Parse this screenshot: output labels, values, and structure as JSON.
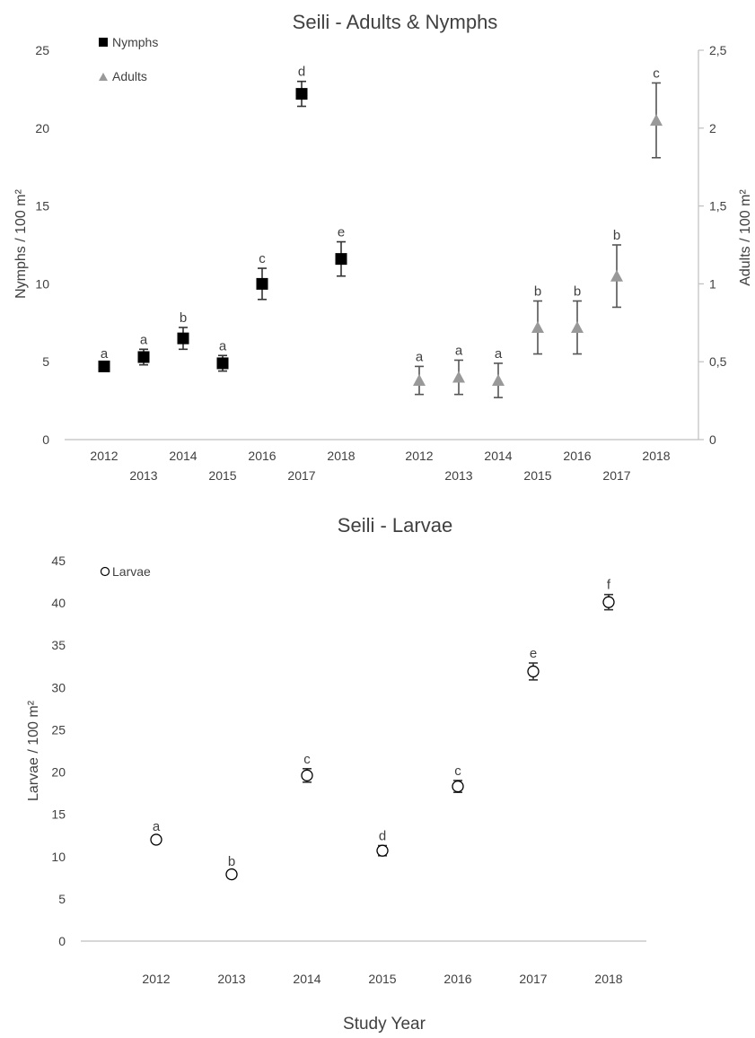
{
  "chart_data": [
    {
      "type": "scatter",
      "title": "Seili - Adults & Nymphs",
      "ylabel": "Nymphs / 100 m²",
      "ylabel_right": "Adults / 100 m²",
      "ylim": [
        0,
        25
      ],
      "yticks": [
        "0",
        "5",
        "10",
        "15",
        "20",
        "25"
      ],
      "ylim_right": [
        0,
        2.5
      ],
      "yticks_right": [
        "0",
        "0,5",
        "1",
        "1,5",
        "2",
        "2,5"
      ],
      "legend": {
        "placement": "top-left",
        "entries": [
          "Nymphs",
          "Adults"
        ]
      },
      "series": [
        {
          "name": "Nymphs",
          "axis": "left",
          "marker": "square",
          "color": "#000000",
          "x": [
            "2012",
            "2013",
            "2014",
            "2015",
            "2016",
            "2017",
            "2018"
          ],
          "values": [
            4.7,
            5.3,
            6.5,
            4.9,
            10.0,
            22.2,
            11.6
          ],
          "errors": [
            0.2,
            0.5,
            0.7,
            0.5,
            1.0,
            0.8,
            1.1
          ],
          "labels": [
            "a",
            "a",
            "b",
            "a",
            "c",
            "d",
            "e"
          ]
        },
        {
          "name": "Adults",
          "axis": "right",
          "marker": "triangle",
          "color": "#999999",
          "x": [
            "2012",
            "2013",
            "2014",
            "2015",
            "2016",
            "2017",
            "2018"
          ],
          "values": [
            0.38,
            0.4,
            0.38,
            0.72,
            0.72,
            1.05,
            2.05
          ],
          "errors": [
            0.09,
            0.11,
            0.11,
            0.17,
            0.17,
            0.2,
            0.24
          ],
          "labels": [
            "a",
            "a",
            "a",
            "b",
            "b",
            "b",
            "c"
          ]
        }
      ]
    },
    {
      "type": "scatter",
      "title": "Seili - Larvae",
      "xlabel": "Study Year",
      "ylabel": "Larvae / 100 m²",
      "ylim": [
        0,
        45
      ],
      "yticks": [
        "0",
        "5",
        "10",
        "15",
        "20",
        "25",
        "30",
        "35",
        "40",
        "45"
      ],
      "legend": {
        "placement": "top-left",
        "entries": [
          "Larvae"
        ]
      },
      "categories": [
        "2012",
        "2013",
        "2014",
        "2015",
        "2016",
        "2017",
        "2018"
      ],
      "series": [
        {
          "name": "Larvae",
          "marker": "open-circle",
          "color": "#000000",
          "values": [
            12.0,
            7.9,
            19.6,
            10.7,
            18.3,
            31.9,
            40.1
          ],
          "errors": [
            0.4,
            0.4,
            0.8,
            0.6,
            0.7,
            1.0,
            0.9
          ],
          "labels": [
            "a",
            "b",
            "c",
            "d",
            "c",
            "e",
            "f"
          ]
        }
      ]
    }
  ]
}
